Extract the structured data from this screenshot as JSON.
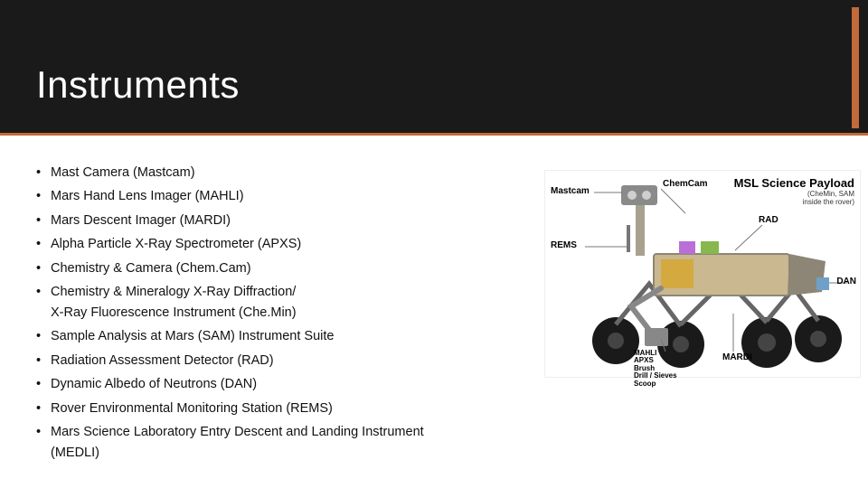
{
  "header": {
    "title": "Instruments",
    "background_color": "#1a1a1a",
    "accent_color": "#c26a3b",
    "title_color": "#ffffff",
    "title_fontsize": 42
  },
  "bullets": [
    "Mast Camera (Mastcam)",
    "Mars Hand Lens Imager (MAHLI)",
    "Mars Descent Imager (MARDI)",
    "Alpha Particle X-Ray Spectrometer (APXS)",
    "Chemistry & Camera (Chem.Cam)",
    "Chemistry & Mineralogy X-Ray Diffraction/\nX-Ray Fluorescence Instrument (Che.Min)",
    "Sample Analysis at Mars (SAM) Instrument Suite",
    "Radiation Assessment Detector (RAD)",
    "Dynamic Albedo of Neutrons (DAN)",
    "Rover Environmental Monitoring Station (REMS)",
    "Mars Science Laboratory Entry Descent and Landing Instrument\n(MEDLI)"
  ],
  "bullet_fontsize": 14.5,
  "bullet_color": "#111111",
  "diagram": {
    "title": "MSL Science Payload",
    "subtitle": "(CheMin, SAM\ninside the rover)",
    "labels": {
      "mastcam": "Mastcam",
      "chemcam": "ChemCam",
      "rems": "REMS",
      "dan": "DAN",
      "mardi": "MARDI",
      "rad": "RAD",
      "mahli_block": "MAHLI\nAPXS\nBrush\nDrill / Sieves\nScoop"
    },
    "label_fontsize": 10,
    "wheel_color": "#1a1a1a",
    "body_colors": {
      "main": "#c9b890",
      "panel": "#8d8676",
      "mast": "#a9a190",
      "head": "#8a8a8a",
      "arm": "#888888",
      "box1": "#b96fd6",
      "box2": "#86b84e",
      "gold": "#d4a940"
    },
    "leader_color": "#777777",
    "background": "#ffffff"
  }
}
